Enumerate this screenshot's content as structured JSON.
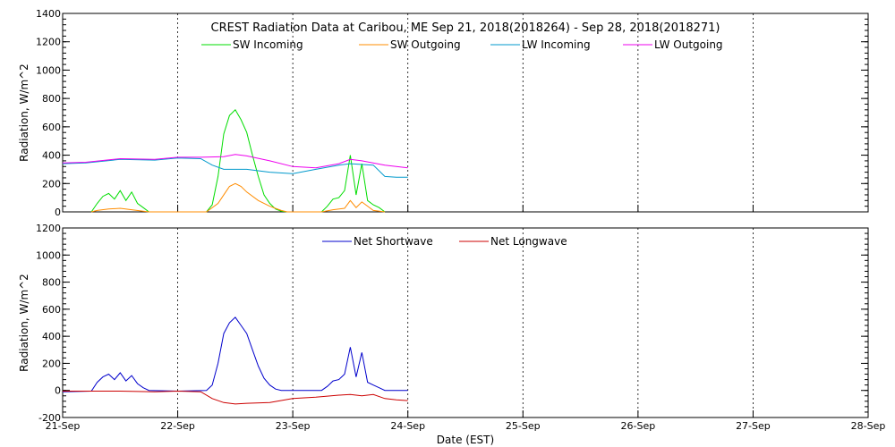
{
  "chart_data": [
    {
      "type": "line",
      "title": "CREST Radiation Data at Caribou, ME   Sep 21, 2018(2018264) - Sep 28, 2018(2018271)",
      "ylabel": "Radiation, W/m^2",
      "xlabel": "",
      "ylim": [
        0,
        1400
      ],
      "yticks": [
        0,
        200,
        400,
        600,
        800,
        1000,
        1200,
        1400
      ],
      "xlim": [
        0,
        7
      ],
      "xticks": [
        0,
        1,
        2,
        3,
        4,
        5,
        6,
        7
      ],
      "xticklabels": [],
      "grid": true,
      "legend": "top-center",
      "series": [
        {
          "name": "SW Incoming",
          "color": "#00dd00",
          "x": [
            0.25,
            0.3,
            0.35,
            0.4,
            0.45,
            0.5,
            0.55,
            0.6,
            0.65,
            0.7,
            0.75,
            1.25,
            1.3,
            1.35,
            1.4,
            1.45,
            1.5,
            1.55,
            1.6,
            1.65,
            1.7,
            1.75,
            1.8,
            1.85,
            1.9,
            1.95,
            2.25,
            2.3,
            2.35,
            2.4,
            2.45,
            2.5,
            2.55,
            2.6,
            2.65,
            2.7,
            2.75,
            2.8
          ],
          "y": [
            0,
            60,
            110,
            130,
            90,
            150,
            80,
            140,
            60,
            30,
            0,
            0,
            50,
            250,
            550,
            680,
            720,
            650,
            560,
            400,
            250,
            120,
            60,
            20,
            5,
            0,
            0,
            40,
            90,
            100,
            150,
            400,
            120,
            340,
            80,
            50,
            30,
            0
          ]
        },
        {
          "name": "SW Outgoing",
          "color": "#ff8c00",
          "x": [
            0.25,
            0.3,
            0.4,
            0.5,
            0.6,
            0.7,
            0.75,
            1.25,
            1.35,
            1.45,
            1.5,
            1.55,
            1.6,
            1.7,
            1.8,
            1.9,
            1.95,
            2.25,
            2.35,
            2.45,
            2.5,
            2.55,
            2.6,
            2.7,
            2.8
          ],
          "y": [
            0,
            10,
            20,
            25,
            15,
            5,
            0,
            0,
            60,
            180,
            200,
            180,
            140,
            80,
            40,
            10,
            0,
            0,
            15,
            25,
            80,
            30,
            70,
            10,
            0
          ]
        },
        {
          "name": "LW Incoming",
          "color": "#0099cc",
          "x": [
            0,
            0.2,
            0.5,
            0.8,
            1.0,
            1.2,
            1.3,
            1.4,
            1.6,
            1.8,
            2.0,
            2.2,
            2.4,
            2.5,
            2.7,
            2.8,
            2.9,
            3.0
          ],
          "y": [
            340,
            345,
            370,
            365,
            380,
            375,
            330,
            300,
            300,
            280,
            270,
            300,
            330,
            340,
            330,
            250,
            245,
            245
          ]
        },
        {
          "name": "LW Outgoing",
          "color": "#ee00ee",
          "x": [
            0,
            0.2,
            0.5,
            0.8,
            1.0,
            1.2,
            1.4,
            1.5,
            1.6,
            1.8,
            2.0,
            2.2,
            2.4,
            2.5,
            2.6,
            2.8,
            3.0
          ],
          "y": [
            345,
            350,
            375,
            370,
            385,
            385,
            390,
            405,
            395,
            360,
            320,
            310,
            340,
            370,
            360,
            330,
            310
          ]
        }
      ]
    },
    {
      "type": "line",
      "title": "",
      "ylabel": "Radiation, W/m^2",
      "xlabel": "Date (EST)",
      "ylim": [
        -200,
        1200
      ],
      "yticks": [
        -200,
        0,
        200,
        400,
        600,
        800,
        1000,
        1200
      ],
      "xlim": [
        0,
        7
      ],
      "xticks": [
        0,
        1,
        2,
        3,
        4,
        5,
        6,
        7
      ],
      "xticklabels": [
        "21-Sep",
        "22-Sep",
        "23-Sep",
        "24-Sep",
        "25-Sep",
        "26-Sep",
        "27-Sep",
        "28-Sep"
      ],
      "grid": true,
      "legend": "top-center",
      "series": [
        {
          "name": "Net Shortwave",
          "color": "#0000cc",
          "x": [
            0,
            0.25,
            0.3,
            0.35,
            0.4,
            0.45,
            0.5,
            0.55,
            0.6,
            0.65,
            0.7,
            0.75,
            1.0,
            1.25,
            1.3,
            1.35,
            1.4,
            1.45,
            1.5,
            1.55,
            1.6,
            1.65,
            1.7,
            1.75,
            1.8,
            1.85,
            1.9,
            1.95,
            2.0,
            2.25,
            2.3,
            2.35,
            2.4,
            2.45,
            2.5,
            2.55,
            2.6,
            2.65,
            2.7,
            2.75,
            2.8,
            3.0
          ],
          "y": [
            -10,
            -5,
            60,
            100,
            120,
            80,
            130,
            70,
            110,
            50,
            20,
            0,
            -5,
            0,
            40,
            200,
            420,
            500,
            540,
            480,
            420,
            300,
            180,
            90,
            40,
            10,
            0,
            0,
            0,
            0,
            30,
            70,
            80,
            120,
            320,
            100,
            280,
            60,
            40,
            20,
            0,
            0
          ]
        },
        {
          "name": "Net Longwave",
          "color": "#cc0000",
          "x": [
            0,
            0.25,
            0.5,
            0.8,
            1.0,
            1.2,
            1.3,
            1.4,
            1.5,
            1.6,
            1.8,
            2.0,
            2.2,
            2.4,
            2.5,
            2.6,
            2.7,
            2.8,
            2.9,
            3.0
          ],
          "y": [
            -5,
            -5,
            -5,
            -10,
            -5,
            -10,
            -60,
            -90,
            -100,
            -95,
            -90,
            -60,
            -50,
            -35,
            -30,
            -40,
            -30,
            -60,
            -70,
            -75
          ]
        }
      ]
    }
  ]
}
